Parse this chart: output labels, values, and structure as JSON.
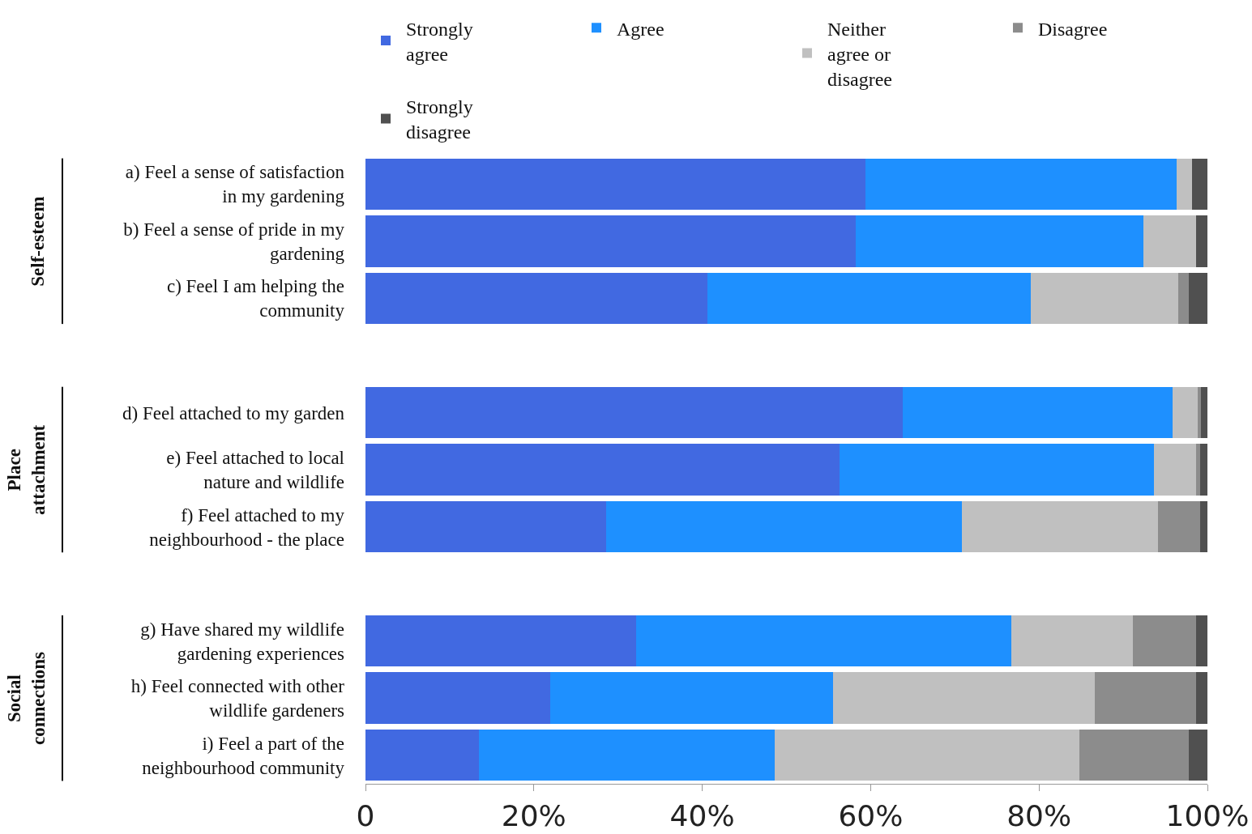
{
  "chart_data": {
    "type": "bar",
    "orientation": "horizontal",
    "stacked": true,
    "legend": "top",
    "categories": [
      "a) Feel a sense of satisfaction in my gardening",
      "b) Feel a sense of pride in my gardening",
      "c) Feel I am helping the community",
      null,
      "d) Feel attached to my garden",
      "e) Feel attached to local nature and wildlife",
      "f) Feel attached to my neighbourhood - the place",
      null,
      "g) Have shared my wildlife gardening experiences",
      "h) Feel connected with other wildlife gardeners",
      "i) Feel a part of the neighbourhood community"
    ],
    "series": [
      {
        "name": "Strongly agree",
        "color": "#4169e1",
        "values": [
          59.4,
          58.2,
          40.6,
          null,
          63.8,
          56.3,
          28.6,
          null,
          32.1,
          21.9,
          13.5
        ]
      },
      {
        "name": "Agree",
        "color": "#1e90ff",
        "values": [
          36.9,
          34.2,
          38.4,
          null,
          32.1,
          37.3,
          42.2,
          null,
          44.6,
          33.6,
          35.1
        ]
      },
      {
        "name": "Neither agree or disagree",
        "color": "#c0c0c0",
        "values": [
          1.9,
          6.3,
          17.5,
          null,
          2.9,
          5.1,
          23.3,
          null,
          14.4,
          31.1,
          36.2
        ]
      },
      {
        "name": "Disagree",
        "color": "#8c8c8c",
        "values": [
          0,
          0,
          1.3,
          null,
          0.4,
          0.4,
          5.0,
          null,
          7.6,
          12.1,
          13.0
        ]
      },
      {
        "name": "Strongly disagree",
        "color": "#505050",
        "values": [
          1.8,
          1.3,
          2.2,
          null,
          0.8,
          0.9,
          0.9,
          null,
          1.3,
          1.3,
          2.2
        ]
      }
    ],
    "xlim": [
      0,
      100
    ],
    "xticks": [
      {
        "value": 0,
        "label": "0"
      },
      {
        "value": 20,
        "label": "20%"
      },
      {
        "value": 40,
        "label": "40%"
      },
      {
        "value": 60,
        "label": "60%"
      },
      {
        "value": 80,
        "label": "80%"
      },
      {
        "value": 100,
        "label": "100%"
      }
    ],
    "grid": false,
    "annotations": [
      "Self-esteem",
      "Place attachment",
      "Social connections"
    ]
  }
}
